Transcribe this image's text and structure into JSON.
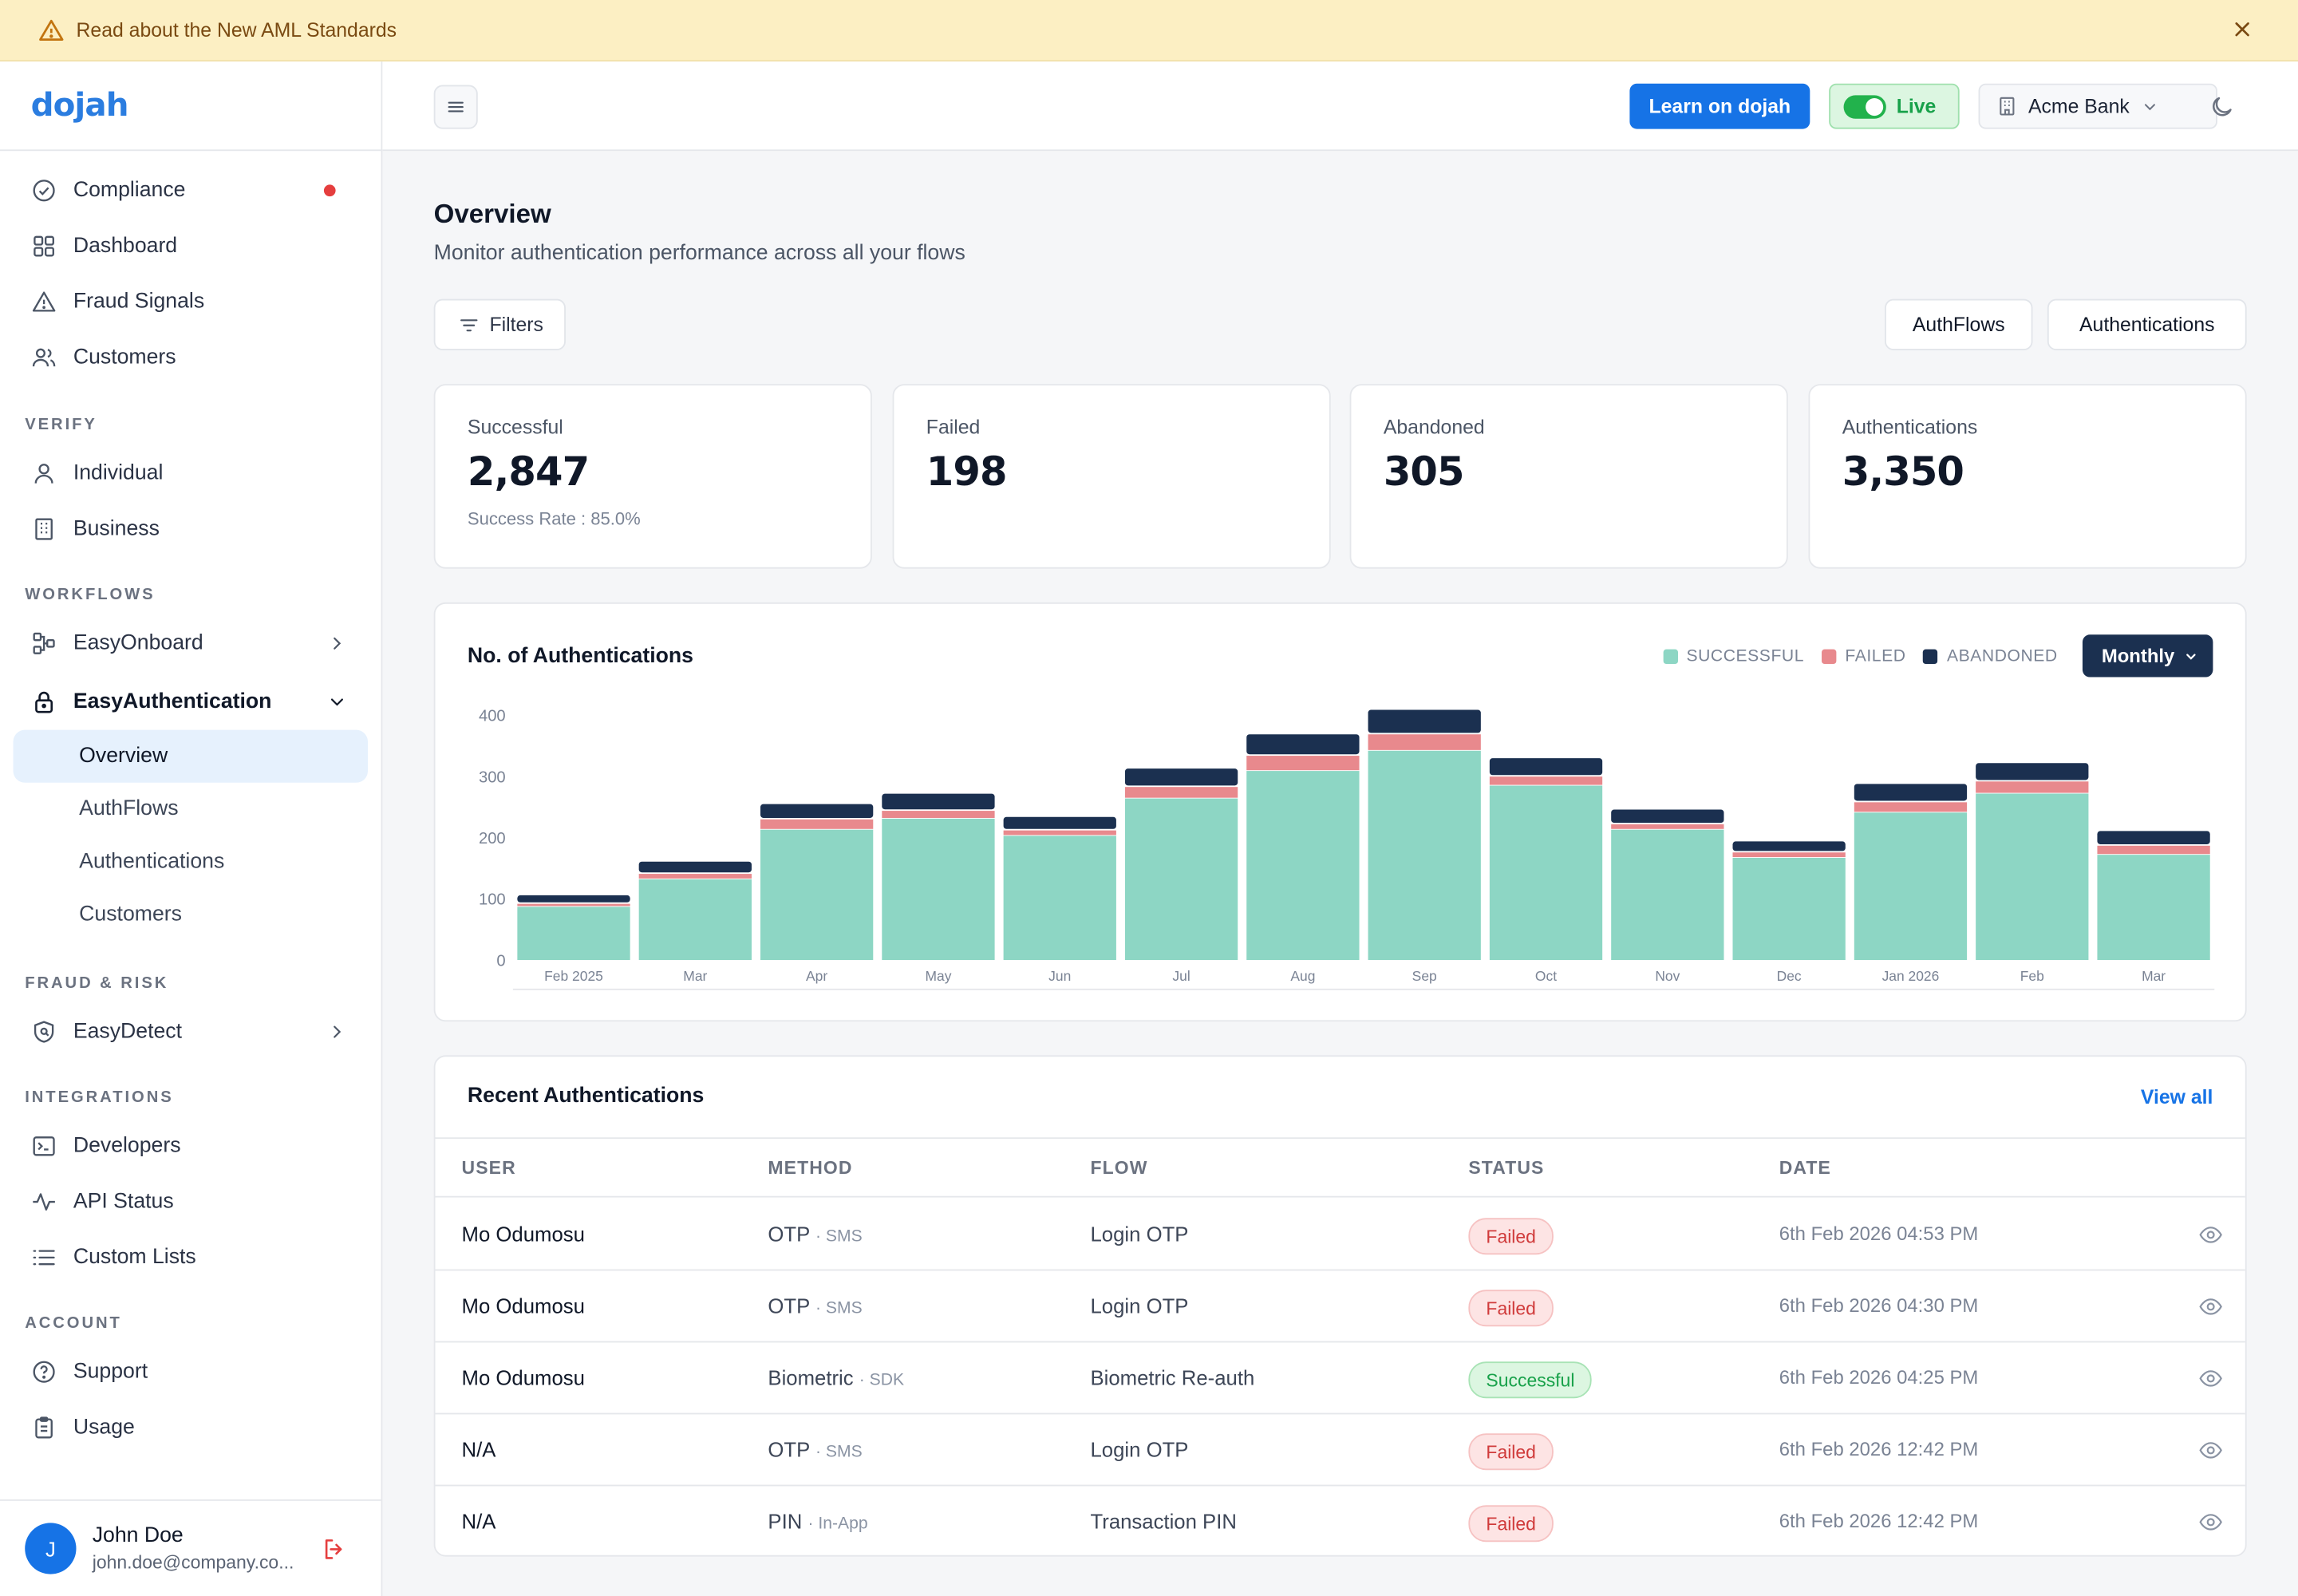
{
  "banner": {
    "text": "Read about the New AML Standards",
    "icon": "warning-icon",
    "close_icon": "close-icon"
  },
  "brand": {
    "logo_text": "dojah",
    "accent": "#1673e6"
  },
  "sidebar": {
    "top_items": [
      {
        "label": "Compliance",
        "icon": "check-circle-icon",
        "has_alert_dot": true
      },
      {
        "label": "Dashboard",
        "icon": "grid-icon"
      },
      {
        "label": "Fraud Signals",
        "icon": "alert-triangle-icon"
      },
      {
        "label": "Customers",
        "icon": "users-icon"
      }
    ],
    "sections": {
      "verify": "VERIFY",
      "workflows": "WORKFLOWS",
      "fraud_risk": "FRAUD & RISK",
      "integrations": "INTEGRATIONS",
      "account": "ACCOUNT"
    },
    "verify_items": [
      {
        "label": "Individual",
        "icon": "user-icon"
      },
      {
        "label": "Business",
        "icon": "building-icon"
      }
    ],
    "workflow_items": [
      {
        "label": "EasyOnboard",
        "icon": "flow-icon"
      },
      {
        "label": "EasyAuthentication",
        "icon": "lock-icon"
      }
    ],
    "easyauth_sub": [
      "Overview",
      "AuthFlows",
      "Authentications",
      "Customers"
    ],
    "active_sub": "Overview",
    "fraud_items": [
      {
        "label": "EasyDetect",
        "icon": "shield-icon"
      }
    ],
    "integration_items": [
      {
        "label": "Developers",
        "icon": "terminal-icon"
      },
      {
        "label": "API Status",
        "icon": "activity-icon"
      },
      {
        "label": "Custom Lists",
        "icon": "list-icon"
      }
    ],
    "account_items": [
      {
        "label": "Support",
        "icon": "help-circle-icon"
      },
      {
        "label": "Usage",
        "icon": "clipboard-icon"
      }
    ],
    "user": {
      "initial": "J",
      "name": "John Doe",
      "email": "john.doe@company.co..."
    }
  },
  "topbar": {
    "learn_label": "Learn on dojah",
    "live_label": "Live",
    "org_label": "Acme Bank"
  },
  "page": {
    "title": "Overview",
    "subtitle": "Monitor authentication performance across all your flows",
    "filters_label": "Filters",
    "tab_authflows": "AuthFlows",
    "tab_authentications": "Authentications"
  },
  "stats": [
    {
      "label": "Successful",
      "value": "2,847",
      "sub": "Success Rate : 85.0%"
    },
    {
      "label": "Failed",
      "value": "198",
      "sub": ""
    },
    {
      "label": "Abandoned",
      "value": "305",
      "sub": ""
    },
    {
      "label": "Authentications",
      "value": "3,350",
      "sub": ""
    }
  ],
  "chart": {
    "title": "No. of Authentications",
    "period_label": "Monthly",
    "legend": {
      "successful": "SUCCESSFUL",
      "failed": "FAILED",
      "abandoned": "ABANDONED"
    },
    "colors": {
      "successful": "#8dd6c4",
      "failed": "#e8898d",
      "abandoned": "#1b3050"
    }
  },
  "chart_data": {
    "type": "bar",
    "stacked": true,
    "categories": [
      "Feb 2025",
      "Mar",
      "Apr",
      "May",
      "Jun",
      "Jul",
      "Aug",
      "Sep",
      "Oct",
      "Nov",
      "Dec",
      "Jan 2026",
      "Feb",
      "Mar"
    ],
    "series": [
      {
        "name": "SUCCESSFUL",
        "values": [
          87,
          132,
          213,
          231,
          203,
          264,
          309,
          342,
          285,
          213,
          167,
          241,
          272,
          172
        ]
      },
      {
        "name": "FAILED",
        "values": [
          6,
          10,
          18,
          14,
          10,
          20,
          26,
          28,
          16,
          10,
          10,
          18,
          21,
          16
        ]
      },
      {
        "name": "ABANDONED",
        "values": [
          14,
          20,
          25,
          28,
          22,
          30,
          35,
          40,
          30,
          24,
          18,
          30,
          30,
          24
        ]
      }
    ],
    "yticks": [
      0,
      100,
      200,
      300,
      400
    ],
    "ylim": [
      0,
      430
    ],
    "grid": false,
    "legend_position": "top-right"
  },
  "recent": {
    "title": "Recent Authentications",
    "view_all": "View all",
    "columns": [
      "USER",
      "METHOD",
      "FLOW",
      "STATUS",
      "DATE"
    ],
    "rows": [
      {
        "user": "Mo Odumosu",
        "method": "OTP",
        "channel": "· SMS",
        "flow": "Login OTP",
        "status": "Failed",
        "date": "6th Feb 2026 04:53 PM"
      },
      {
        "user": "Mo Odumosu",
        "method": "OTP",
        "channel": "· SMS",
        "flow": "Login OTP",
        "status": "Failed",
        "date": "6th Feb 2026 04:30 PM"
      },
      {
        "user": "Mo Odumosu",
        "method": "Biometric",
        "channel": "· SDK",
        "flow": "Biometric Re-auth",
        "status": "Successful",
        "date": "6th Feb 2026 04:25 PM"
      },
      {
        "user": "N/A",
        "method": "OTP",
        "channel": "· SMS",
        "flow": "Login OTP",
        "status": "Failed",
        "date": "6th Feb 2026 12:42 PM"
      },
      {
        "user": "N/A",
        "method": "PIN",
        "channel": "· In-App",
        "flow": "Transaction PIN",
        "status": "Failed",
        "date": "6th Feb 2026 12:42 PM"
      }
    ]
  }
}
